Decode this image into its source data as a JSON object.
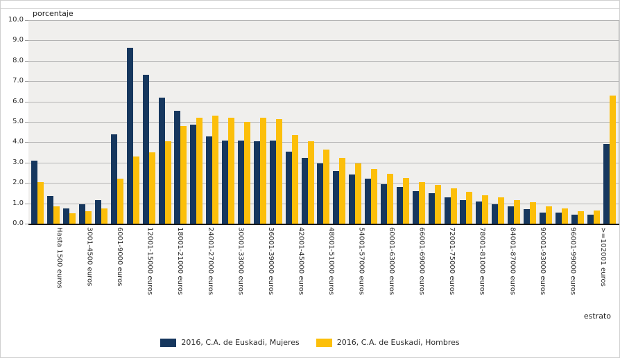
{
  "chart_data": {
    "type": "bar",
    "title": "",
    "ylabel": "porcentaje",
    "xlabel": "estrato",
    "ylim": [
      0,
      10
    ],
    "ytick_labels": [
      "10.0",
      "9.0",
      "8.0",
      "7.0",
      "6.0",
      "5.0",
      "4.0",
      "3.0",
      "2.0",
      "1.0",
      "0.0"
    ],
    "grid": true,
    "legend_position": "bottom",
    "x_label_interval": 2,
    "x_labels_visible": [
      "Hasta 1500 euros",
      "3001-4500 euros",
      "6001-9000 euros",
      "12001-15000 euros",
      "18001-21000 euros",
      "24001-27000 euros",
      "30001-33000 euros",
      "36001-39000 euros",
      "42001-45000 euros",
      "48001-51000 euros",
      "54001-57000 euros",
      "60001-63000 euros",
      "66001-69000 euros",
      "72001-75000 euros",
      "78001-81000 euros",
      "84001-87000 euros",
      "90001-93000 euros",
      "96001-99000 euros",
      ">=102001 euros"
    ],
    "series": [
      {
        "name": "2016, C.A. de Euskadi, Mujeres",
        "color": "#16375e",
        "values": [
          3.1,
          1.35,
          0.75,
          0.95,
          1.15,
          4.4,
          8.65,
          7.3,
          6.2,
          5.55,
          4.85,
          4.3,
          4.1,
          4.1,
          4.05,
          4.1,
          3.55,
          3.25,
          2.95,
          2.6,
          2.4,
          2.2,
          1.95,
          1.8,
          1.6,
          1.5,
          1.3,
          1.15,
          1.1,
          0.95,
          0.85,
          0.7,
          0.55,
          0.55,
          0.45,
          0.45,
          3.9
        ]
      },
      {
        "name": "2016, C.A. de Euskadi, Hombres",
        "color": "#fcbf0a",
        "values": [
          2.05,
          0.85,
          0.5,
          0.6,
          0.75,
          2.2,
          3.3,
          3.5,
          4.05,
          4.8,
          5.2,
          5.3,
          5.2,
          5.0,
          5.2,
          5.15,
          4.35,
          4.05,
          3.65,
          3.25,
          2.95,
          2.7,
          2.45,
          2.25,
          2.05,
          1.9,
          1.75,
          1.55,
          1.4,
          1.3,
          1.15,
          1.05,
          0.85,
          0.75,
          0.6,
          0.65,
          6.3
        ]
      }
    ]
  }
}
